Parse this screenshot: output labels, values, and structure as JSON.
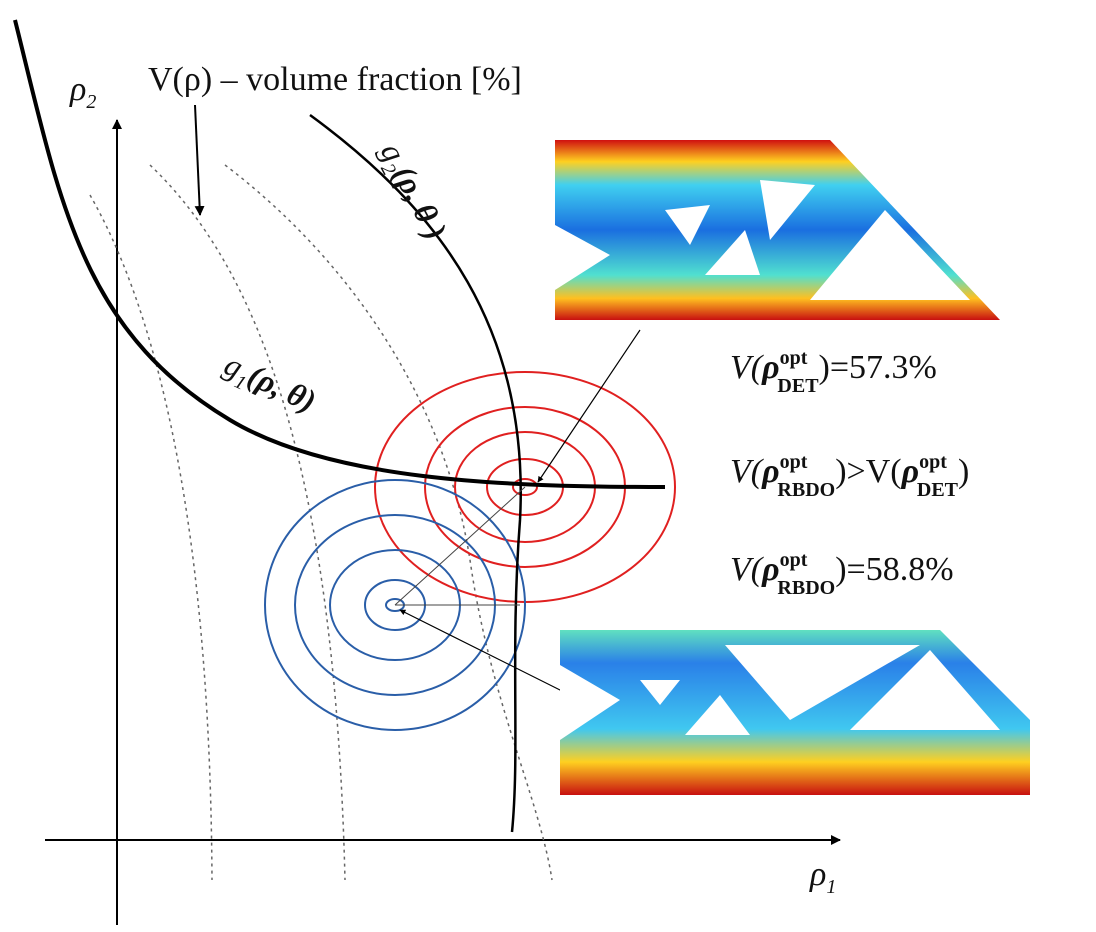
{
  "axes": {
    "y_label": {
      "base": "ρ",
      "sub": "2"
    },
    "x_label": {
      "base": "ρ",
      "sub": "1"
    }
  },
  "objective_label": "V(ρ) – volume fraction [%]",
  "constraints": {
    "g2": {
      "base": "g",
      "sub": "2",
      "args": "(ρ, θ )"
    },
    "g1": {
      "base": "g",
      "sub": "1",
      "args": "(ρ, θ)"
    }
  },
  "results": {
    "det": {
      "prefix": "V(",
      "rho": "ρ",
      "sup": "opt",
      "sub": "DET",
      "suffix": ")=57.3%"
    },
    "comparison": {
      "prefix": "V(",
      "rho": "ρ",
      "sup": "opt",
      "sub": "RBDO",
      "middle": ")>V(",
      "rho2": "ρ",
      "sup2": "opt",
      "sub2": "DET",
      "suffix": ")"
    },
    "rbdo": {
      "prefix": "V(",
      "rho": "ρ",
      "sup": "opt",
      "sub": "RBDO",
      "suffix": ")=58.8%"
    }
  }
}
